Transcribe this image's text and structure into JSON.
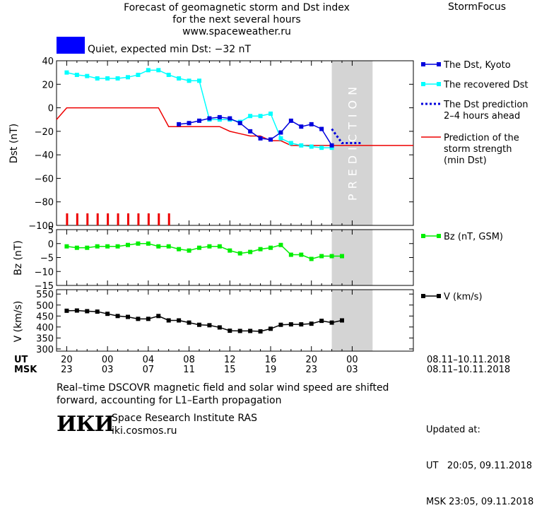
{
  "header": {
    "title_lines": [
      "Forecast of geomagnetic storm and Dst index",
      "for the next several hours",
      "www.spaceweather.ru"
    ],
    "brand": "StormFocus"
  },
  "status": {
    "swatch_color": "#0000ff",
    "text": "Quiet, expected min Dst: −32 nT"
  },
  "legend": {
    "dst_kyoto": [
      "The Dst, Kyoto"
    ],
    "recovered": [
      "The recovered Dst"
    ],
    "dst_prediction": [
      "The Dst prediction",
      "2–4 hours ahead"
    ],
    "storm_strength": [
      "Prediction of the",
      "storm strength",
      "(min Dst)"
    ],
    "bz": [
      "Bz (nT, GSM)"
    ],
    "v": [
      "V (km/s)"
    ]
  },
  "prediction_label": "PREDICTION",
  "time_axis": {
    "ut_label": "UT",
    "msk_label": "MSK",
    "ut_ticks": [
      "20",
      "00",
      "04",
      "08",
      "12",
      "16",
      "20",
      "00"
    ],
    "msk_ticks": [
      "23",
      "03",
      "07",
      "11",
      "15",
      "19",
      "23",
      "03"
    ],
    "ut_range": "08.11–10.11.2018",
    "msk_range": "08.11–10.11.2018"
  },
  "footer": {
    "caption_lines": [
      "Real–time DSCOVR magnetic field and solar wind speed are shifted",
      "forward, accounting for L1–Earth propagation"
    ],
    "logo_text": "ИКИ",
    "institute": "Space Research Institute RAS",
    "site": "iki.cosmos.ru",
    "updated_title": "Updated at:",
    "updated_ut": "UT   20:05, 09.11.2018",
    "updated_msk": "MSK 23:05, 09.11.2018"
  },
  "colors": {
    "dst_kyoto": "#0000dd",
    "recovered": "#00ffff",
    "storm_strength": "#ee0000",
    "bz": "#00ee00",
    "v": "#000000",
    "prediction_band": "#d4d4d4"
  },
  "chart_data": [
    {
      "type": "line",
      "title": "",
      "xlabel": "",
      "ylabel": "Dst (nT)",
      "ylim": [
        -100,
        40
      ],
      "yticks": [
        40,
        20,
        0,
        -20,
        -40,
        -60,
        -80,
        -100
      ],
      "x_unit": "hours after 20 UT 08.11.2018",
      "xlim": [
        -1,
        34
      ],
      "prediction_band": [
        26,
        30
      ],
      "series": [
        {
          "name": "The Dst, Kyoto",
          "x": [
            11,
            12,
            13,
            14,
            15,
            16,
            17,
            18,
            19,
            20,
            21,
            22,
            23,
            24,
            25,
            26
          ],
          "values": [
            -14,
            -13,
            -11,
            -9,
            -8,
            -9,
            -13,
            -20,
            -26,
            -27,
            -21,
            -11,
            -16,
            -14,
            -18,
            -32
          ]
        },
        {
          "name": "The recovered Dst",
          "x": [
            0,
            1,
            2,
            3,
            4,
            5,
            6,
            7,
            8,
            9,
            10,
            11,
            12,
            13,
            14,
            15,
            16,
            17,
            18,
            19,
            20,
            21,
            22,
            23,
            24,
            25,
            26
          ],
          "values": [
            30,
            28,
            27,
            25,
            25,
            25,
            26,
            28,
            32,
            32,
            28,
            25,
            23,
            23,
            -10,
            -10,
            -10,
            -12,
            -7,
            -7,
            -5,
            -26,
            -30,
            -32,
            -33,
            -34,
            -34
          ]
        },
        {
          "name": "The Dst prediction 2–4 hours ahead",
          "x": [
            26,
            27,
            28,
            29
          ],
          "values": [
            -18,
            -30,
            -30,
            -30
          ]
        },
        {
          "name": "Prediction of the storm strength (min Dst)",
          "x": [
            -1,
            0,
            1,
            2,
            3,
            4,
            5,
            6,
            7,
            8,
            9,
            10,
            11,
            12,
            13,
            14,
            15,
            16,
            17,
            18,
            19,
            20,
            21,
            22,
            23,
            24,
            25,
            26,
            27,
            28,
            29,
            30,
            31,
            32,
            33,
            34
          ],
          "values": [
            -10,
            0,
            0,
            0,
            0,
            0,
            0,
            0,
            0,
            0,
            0,
            -16,
            -16,
            -16,
            -16,
            -16,
            -16,
            -20,
            -22,
            -24,
            -24,
            -28,
            -28,
            -32,
            -32,
            -32,
            -32,
            -32,
            -32,
            -32,
            -32,
            -32,
            -32,
            -32,
            -32,
            -32
          ]
        }
      ],
      "kp_bars_x": [
        0,
        1,
        2,
        3,
        4,
        5,
        6,
        7,
        8,
        9,
        10
      ]
    },
    {
      "type": "line",
      "title": "",
      "xlabel": "",
      "ylabel": "Bz (nT)",
      "ylim": [
        -15,
        5
      ],
      "yticks": [
        5,
        0,
        -5,
        -10,
        -15
      ],
      "series": [
        {
          "name": "Bz (nT, GSM)",
          "x": [
            0,
            1,
            2,
            3,
            4,
            5,
            6,
            7,
            8,
            9,
            10,
            11,
            12,
            13,
            14,
            15,
            16,
            17,
            18,
            19,
            20,
            21,
            22,
            23,
            24,
            25,
            26,
            27
          ],
          "values": [
            -1,
            -1.5,
            -1.5,
            -1,
            -1,
            -1,
            -0.5,
            0,
            0,
            -1,
            -1,
            -2,
            -2.5,
            -1.5,
            -1,
            -1,
            -2.5,
            -3.5,
            -3,
            -2,
            -1.5,
            -0.5,
            -4,
            -4,
            -5.5,
            -4.5,
            -4.5,
            -4.5
          ]
        }
      ]
    },
    {
      "type": "line",
      "title": "",
      "xlabel": "",
      "ylabel": "V (km/s)",
      "ylim": [
        290,
        570
      ],
      "yticks": [
        550,
        500,
        450,
        400,
        350,
        300
      ],
      "series": [
        {
          "name": "V (km/s)",
          "x": [
            0,
            1,
            2,
            3,
            4,
            5,
            6,
            7,
            8,
            9,
            10,
            11,
            12,
            13,
            14,
            15,
            16,
            17,
            18,
            19,
            20,
            21,
            22,
            23,
            24,
            25,
            26,
            27
          ],
          "values": [
            474,
            475,
            472,
            470,
            460,
            450,
            446,
            437,
            437,
            450,
            430,
            430,
            420,
            410,
            408,
            398,
            383,
            382,
            382,
            380,
            392,
            410,
            412,
            412,
            415,
            428,
            420,
            430
          ]
        }
      ]
    }
  ]
}
